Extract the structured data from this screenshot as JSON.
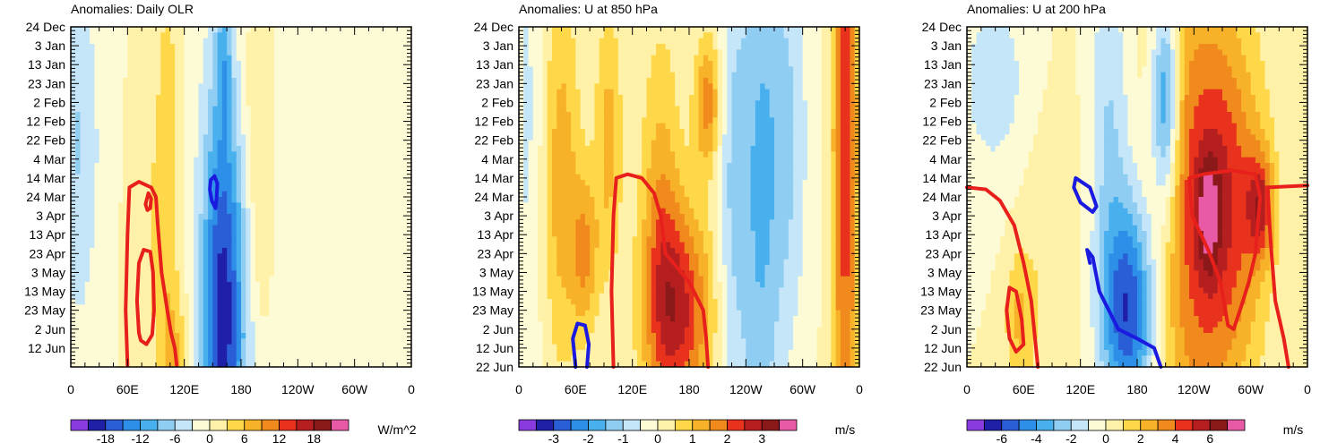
{
  "chart_data": [
    {
      "type": "heatmap",
      "title": "Anomalies: Daily OLR",
      "xlabel": "",
      "ylabel": "",
      "x_tick_labels": [
        "0",
        "60E",
        "120E",
        "180",
        "120W",
        "60W",
        "0"
      ],
      "xlim": [
        0,
        360
      ],
      "y_tick_labels": [
        "24 Dec",
        "3 Jan",
        "13 Jan",
        "23 Jan",
        "2 Feb",
        "12 Feb",
        "22 Feb",
        "4 Mar",
        "14 Mar",
        "24 Mar",
        "3 Apr",
        "13 Apr",
        "23 Apr",
        "3 May",
        "13 May",
        "23 May",
        "2 Jun",
        "12 Jun"
      ],
      "colorbar": {
        "labels": [
          "-18",
          "-12",
          "-6",
          "0",
          "6",
          "12",
          "18"
        ],
        "label_values": [
          -18,
          -12,
          -6,
          0,
          6,
          12,
          18
        ],
        "range": [
          -24,
          24
        ],
        "units": "W/m^2"
      },
      "field": {
        "background": 0,
        "features": [
          {
            "lon": 5,
            "day": 60,
            "amp": -4,
            "dlon": 10,
            "dday": 60
          },
          {
            "lon": 25,
            "day": 70,
            "amp": -3,
            "dlon": 25,
            "dday": 100
          },
          {
            "lon": 80,
            "day": 110,
            "amp": 3,
            "dlon": 25,
            "dday": 80
          },
          {
            "lon": 160,
            "day": 150,
            "amp": -14,
            "dlon": 15,
            "dday": 80
          },
          {
            "lon": 168,
            "day": 155,
            "amp": -6,
            "dlon": 25,
            "dday": 120
          },
          {
            "lon": 162,
            "day": 15,
            "amp": -6,
            "dlon": 6,
            "dday": 25
          },
          {
            "lon": 103,
            "day": 110,
            "amp": 4,
            "dlon": 8,
            "dday": 120
          },
          {
            "lon": 115,
            "day": 175,
            "amp": 5,
            "dlon": 10,
            "dday": 20
          },
          {
            "lon": 200,
            "day": 105,
            "amp": 4,
            "dlon": 10,
            "dday": 60
          },
          {
            "lon": 190,
            "day": 40,
            "amp": 3,
            "dlon": 15,
            "dday": 45
          },
          {
            "lon": 260,
            "day": 100,
            "amp": -2,
            "dlon": 30,
            "dday": 140
          },
          {
            "lon": 315,
            "day": 140,
            "amp": -2,
            "dlon": 25,
            "dday": 100
          }
        ]
      },
      "contours": [
        {
          "color": "blue",
          "path": [
            [
              148,
              81
            ],
            [
              152,
              79
            ],
            [
              155,
              83
            ],
            [
              154,
              91
            ],
            [
              153,
              96
            ],
            [
              149,
              92
            ],
            [
              147,
              86
            ],
            [
              148,
              81
            ]
          ]
        },
        {
          "color": "red",
          "path": [
            [
              60,
              179
            ],
            [
              58,
              150
            ],
            [
              60,
              110
            ],
            [
              62,
              85
            ],
            [
              72,
              82
            ],
            [
              85,
              85
            ],
            [
              90,
              90
            ],
            [
              92,
              105
            ],
            [
              96,
              130
            ],
            [
              102,
              150
            ],
            [
              106,
              162
            ],
            [
              110,
              170
            ],
            [
              112,
              179
            ]
          ]
        },
        {
          "color": "red",
          "path": [
            [
              80,
              92
            ],
            [
              82,
              88
            ],
            [
              85,
              91
            ],
            [
              84,
              96
            ],
            [
              81,
              97
            ],
            [
              79,
              94
            ],
            [
              80,
              92
            ]
          ]
        },
        {
          "color": "red",
          "path": [
            [
              72,
              162
            ],
            [
              70,
              145
            ],
            [
              72,
              125
            ],
            [
              77,
              118
            ],
            [
              84,
              119
            ],
            [
              87,
              130
            ],
            [
              88,
              150
            ],
            [
              86,
              163
            ],
            [
              80,
              168
            ],
            [
              74,
              166
            ],
            [
              72,
              162
            ]
          ]
        }
      ]
    },
    {
      "type": "heatmap",
      "title": "Anomalies: U at 850 hPa",
      "xlabel": "",
      "ylabel": "",
      "x_tick_labels": [
        "0",
        "60E",
        "120E",
        "180",
        "120W",
        "60W",
        "0"
      ],
      "xlim": [
        0,
        360
      ],
      "y_tick_labels": [
        "24 Dec",
        "3 Jan",
        "13 Jan",
        "23 Jan",
        "2 Feb",
        "12 Feb",
        "22 Feb",
        "4 Mar",
        "14 Mar",
        "24 Mar",
        "3 Apr",
        "13 Apr",
        "23 Apr",
        "3 May",
        "13 May",
        "23 May",
        "2 Jun",
        "12 Jun",
        "22 Jun"
      ],
      "colorbar": {
        "labels": [
          "-3",
          "-2",
          "-1",
          "0",
          "1",
          "2",
          "3"
        ],
        "label_values": [
          -3,
          -2,
          -1,
          0,
          1,
          2,
          3
        ],
        "range": [
          -4,
          4
        ],
        "units": "m/s"
      },
      "field": {
        "background": 0,
        "features": [
          {
            "lon": 10,
            "day": 50,
            "amp": -0.6,
            "dlon": 12,
            "dday": 100
          },
          {
            "lon": 45,
            "day": 80,
            "amp": 1.3,
            "dlon": 14,
            "dday": 70
          },
          {
            "lon": 70,
            "day": 120,
            "amp": 1.5,
            "dlon": 10,
            "dday": 30
          },
          {
            "lon": 95,
            "day": 60,
            "amp": 1.2,
            "dlon": 10,
            "dday": 50
          },
          {
            "lon": 150,
            "day": 100,
            "amp": 1.2,
            "dlon": 15,
            "dday": 70
          },
          {
            "lon": 170,
            "day": 150,
            "amp": 2.5,
            "dlon": 25,
            "dday": 40
          },
          {
            "lon": 200,
            "day": 40,
            "amp": 1.8,
            "dlon": 10,
            "dday": 25
          },
          {
            "lon": 225,
            "day": 90,
            "amp": -1,
            "dlon": 12,
            "dday": 100
          },
          {
            "lon": 255,
            "day": 90,
            "amp": -1.5,
            "dlon": 15,
            "dday": 120
          },
          {
            "lon": 285,
            "day": 60,
            "amp": -1,
            "dlon": 15,
            "dday": 80
          },
          {
            "lon": 345,
            "day": 60,
            "amp": 2.2,
            "dlon": 10,
            "dday": 200
          }
        ]
      },
      "contours": [
        {
          "color": "red",
          "path": [
            [
              100,
              180
            ],
            [
              98,
              140
            ],
            [
              100,
              100
            ],
            [
              103,
              80
            ],
            [
              115,
              78
            ],
            [
              130,
              80
            ],
            [
              143,
              88
            ],
            [
              150,
              100
            ],
            [
              155,
              120
            ],
            [
              180,
              135
            ],
            [
              195,
              150
            ],
            [
              198,
              165
            ],
            [
              200,
              180
            ]
          ]
        },
        {
          "color": "blue",
          "path": [
            [
              60,
              180
            ],
            [
              57,
              165
            ],
            [
              62,
              157
            ],
            [
              70,
              158
            ],
            [
              74,
              168
            ],
            [
              72,
              180
            ]
          ]
        }
      ]
    },
    {
      "type": "heatmap",
      "title": "Anomalies: U at 200 hPa",
      "xlabel": "",
      "ylabel": "",
      "x_tick_labels": [
        "0",
        "60E",
        "120E",
        "180",
        "120W",
        "60W",
        "0"
      ],
      "xlim": [
        0,
        360
      ],
      "y_tick_labels": [
        "24 Dec",
        "3 Jan",
        "13 Jan",
        "23 Jan",
        "2 Feb",
        "12 Feb",
        "22 Feb",
        "4 Mar",
        "14 Mar",
        "24 Mar",
        "3 Apr",
        "13 Apr",
        "23 Apr",
        "3 May",
        "13 May",
        "23 May",
        "2 Jun",
        "12 Jun",
        "22 Jun"
      ],
      "colorbar": {
        "labels": [
          "-6",
          "-4",
          "-2",
          "0",
          "2",
          "4",
          "6"
        ],
        "label_values": [
          -6,
          -4,
          -2,
          0,
          2,
          4,
          6
        ],
        "range": [
          -8,
          8
        ],
        "units": "m/s"
      },
      "field": {
        "background": 0,
        "features": [
          {
            "lon": 30,
            "day": 30,
            "amp": -1.5,
            "dlon": 30,
            "dday": 40
          },
          {
            "lon": 90,
            "day": 120,
            "amp": 1,
            "dlon": 25,
            "dday": 60
          },
          {
            "lon": 55,
            "day": 155,
            "amp": 2,
            "dlon": 10,
            "dday": 25
          },
          {
            "lon": 150,
            "day": 50,
            "amp": -2,
            "dlon": 15,
            "dday": 60
          },
          {
            "lon": 170,
            "day": 150,
            "amp": -6,
            "dlon": 20,
            "dday": 40
          },
          {
            "lon": 210,
            "day": 40,
            "amp": -5,
            "dlon": 10,
            "dday": 40
          },
          {
            "lon": 230,
            "day": 110,
            "amp": 2,
            "dlon": 25,
            "dday": 150
          },
          {
            "lon": 270,
            "day": 95,
            "amp": 5,
            "dlon": 30,
            "dday": 70
          },
          {
            "lon": 255,
            "day": 100,
            "amp": 3,
            "dlon": 8,
            "dday": 20
          },
          {
            "lon": 310,
            "day": 95,
            "amp": 4,
            "dlon": 10,
            "dday": 20
          }
        ]
      },
      "contours": [
        {
          "color": "red",
          "path": [
            [
              0,
              85
            ],
            [
              20,
              86
            ],
            [
              35,
              92
            ],
            [
              50,
              105
            ],
            [
              60,
              125
            ],
            [
              68,
              145
            ],
            [
              72,
              165
            ],
            [
              75,
              180
            ]
          ]
        },
        {
          "color": "red",
          "path": [
            [
              45,
              165
            ],
            [
              42,
              150
            ],
            [
              45,
              138
            ],
            [
              52,
              140
            ],
            [
              58,
              155
            ],
            [
              60,
              168
            ],
            [
              52,
              172
            ],
            [
              45,
              165
            ]
          ]
        },
        {
          "color": "blue",
          "path": [
            [
              120,
              93
            ],
            [
              113,
              85
            ],
            [
              115,
              80
            ],
            [
              130,
              85
            ],
            [
              137,
              95
            ],
            [
              133,
              98
            ],
            [
              120,
              93
            ]
          ]
        },
        {
          "color": "red",
          "path": [
            [
              340,
              180
            ],
            [
              335,
              165
            ],
            [
              326,
              145
            ],
            [
              322,
              120
            ],
            [
              320,
              105
            ],
            [
              318,
              85
            ],
            [
              360,
              84
            ]
          ]
        },
        {
          "color": "red",
          "path": [
            [
              310,
              90
            ],
            [
              305,
              78
            ],
            [
              280,
              76
            ],
            [
              250,
              78
            ],
            [
              235,
              80
            ],
            [
              238,
              100
            ],
            [
              255,
              118
            ],
            [
              268,
              135
            ],
            [
              276,
              158
            ],
            [
              282,
              160
            ],
            [
              290,
              148
            ],
            [
              298,
              135
            ],
            [
              305,
              120
            ],
            [
              310,
              90
            ]
          ]
        },
        {
          "color": "blue",
          "path": [
            [
              130,
              125
            ],
            [
              127,
              118
            ],
            [
              133,
              122
            ],
            [
              140,
              140
            ],
            [
              160,
              160
            ],
            [
              180,
              165
            ],
            [
              198,
              170
            ],
            [
              205,
              180
            ]
          ]
        }
      ]
    }
  ]
}
